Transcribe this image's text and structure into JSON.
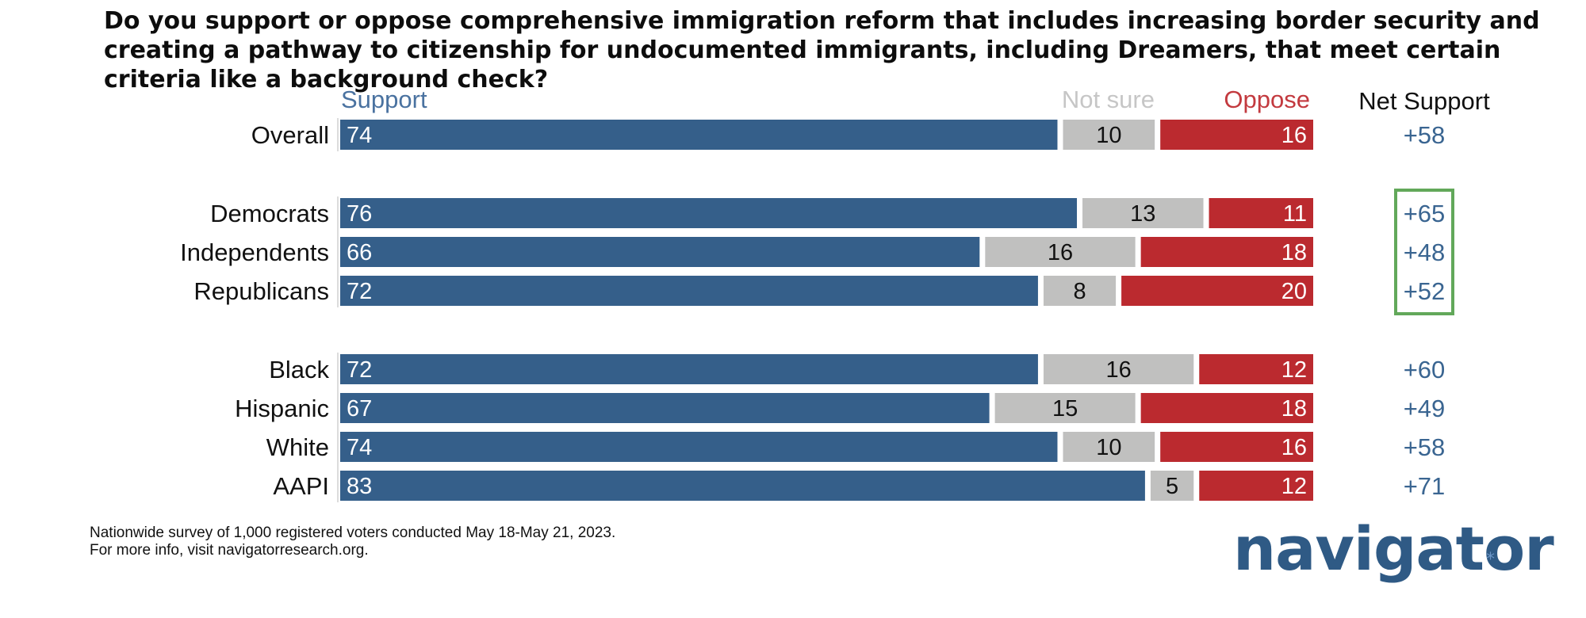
{
  "title": "Do you support or oppose comprehensive immigration reform that includes increasing border security and creating a pathway to citizenship for undocumented immigrants, including Dreamers, that meet certain criteria like a background check?",
  "headers": {
    "support": "Support",
    "not_sure": "Not sure",
    "oppose": "Oppose",
    "net": "Net Support"
  },
  "footnote": {
    "line1": "Nationwide survey of 1,000 registered voters conducted May 18-May 21, 2023.",
    "line2": "For more info, visit navigatorresearch.org."
  },
  "logo": {
    "text": "navigator",
    "mark": "*"
  },
  "colors": {
    "support": "#355f8a",
    "not_sure": "#c0c0bf",
    "oppose": "#bb2a2f",
    "support_header": "#4a72a0",
    "not_sure_header": "#c6c6c6",
    "oppose_header": "#c33a3f",
    "net": "#3a6591",
    "highlight_box": "#62a85a"
  },
  "chart_data": {
    "type": "bar",
    "orientation": "horizontal",
    "stacked": true,
    "title": "Do you support or oppose comprehensive immigration reform that includes increasing border security and creating a pathway to citizenship for undocumented immigrants, including Dreamers, that meet certain criteria like a background check?",
    "xlim": [
      0,
      100
    ],
    "categories": [
      "Overall",
      "Democrats",
      "Independents",
      "Republicans",
      "Black",
      "Hispanic",
      "White",
      "AAPI"
    ],
    "groups": [
      [
        0
      ],
      [
        1,
        2,
        3
      ],
      [
        4,
        5,
        6,
        7
      ]
    ],
    "series": [
      {
        "name": "Support",
        "values": [
          74,
          76,
          66,
          72,
          72,
          67,
          74,
          83
        ]
      },
      {
        "name": "Not sure",
        "values": [
          10,
          13,
          16,
          8,
          16,
          15,
          10,
          5
        ]
      },
      {
        "name": "Oppose",
        "values": [
          16,
          11,
          18,
          20,
          12,
          18,
          16,
          12
        ]
      }
    ],
    "net_support": [
      "+58",
      "+65",
      "+48",
      "+52",
      "+60",
      "+49",
      "+58",
      "+71"
    ],
    "highlighted_rows": [
      "Democrats",
      "Independents",
      "Republicans"
    ]
  }
}
